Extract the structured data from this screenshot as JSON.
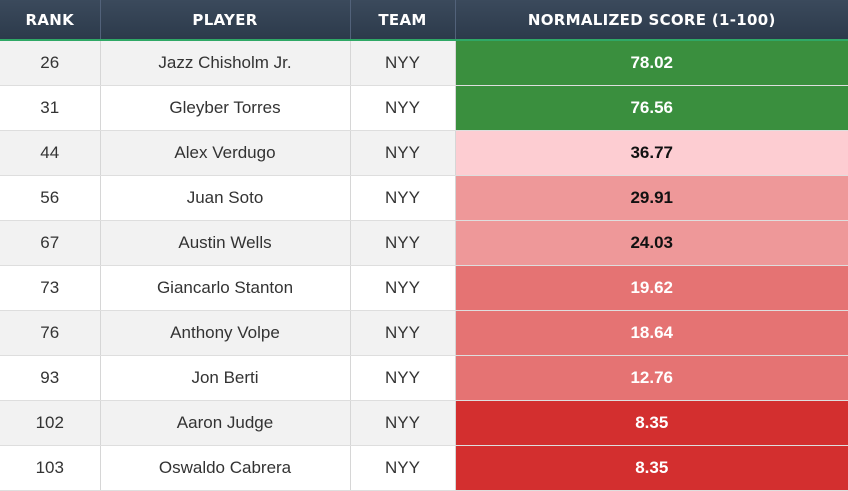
{
  "header": {
    "rank": "RANK",
    "player": "PLAYER",
    "team": "TEAM",
    "score": "NORMALIZED SCORE (1-100)"
  },
  "rows": [
    {
      "rank": "26",
      "player": "Jazz Chisholm Jr.",
      "team": "NYY",
      "score": "78.02",
      "score_bg": "#3a8f3e",
      "score_color": "#ffffff"
    },
    {
      "rank": "31",
      "player": "Gleyber Torres",
      "team": "NYY",
      "score": "76.56",
      "score_bg": "#3a8f3e",
      "score_color": "#ffffff"
    },
    {
      "rank": "44",
      "player": "Alex Verdugo",
      "team": "NYY",
      "score": "36.77",
      "score_bg": "#fdcdd2",
      "score_color": "#111111"
    },
    {
      "rank": "56",
      "player": "Juan Soto",
      "team": "NYY",
      "score": "29.91",
      "score_bg": "#ee9899",
      "score_color": "#111111"
    },
    {
      "rank": "67",
      "player": "Austin Wells",
      "team": "NYY",
      "score": "24.03",
      "score_bg": "#ee9899",
      "score_color": "#111111"
    },
    {
      "rank": "73",
      "player": "Giancarlo Stanton",
      "team": "NYY",
      "score": "19.62",
      "score_bg": "#e57373",
      "score_color": "#ffffff"
    },
    {
      "rank": "76",
      "player": "Anthony Volpe",
      "team": "NYY",
      "score": "18.64",
      "score_bg": "#e57373",
      "score_color": "#ffffff"
    },
    {
      "rank": "93",
      "player": "Jon Berti",
      "team": "NYY",
      "score": "12.76",
      "score_bg": "#e57373",
      "score_color": "#ffffff"
    },
    {
      "rank": "102",
      "player": "Aaron Judge",
      "team": "NYY",
      "score": "8.35",
      "score_bg": "#d32f2f",
      "score_color": "#ffffff"
    },
    {
      "rank": "103",
      "player": "Oswaldo Cabrera",
      "team": "NYY",
      "score": "8.35",
      "score_bg": "#d32f2f",
      "score_color": "#ffffff"
    }
  ]
}
